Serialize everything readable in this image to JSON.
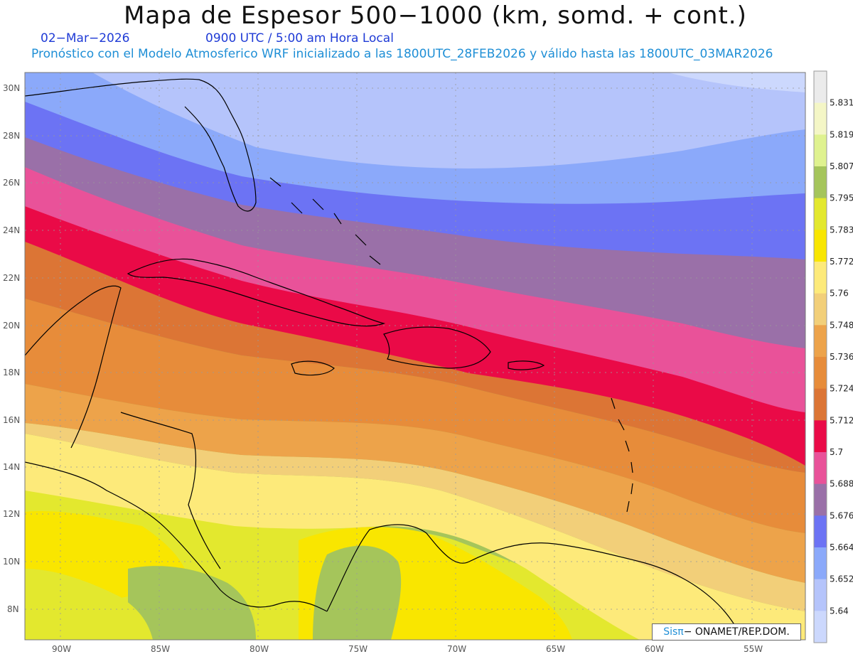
{
  "header": {
    "title": "Mapa de Espesor 500−1000 (km, somd. + cont.)",
    "date": "02−Mar−2026",
    "time": "0900 UTC / 5:00 am Hora Local",
    "model": "Pronóstico con el Modelo Atmosferico WRF inicializado a las 1800UTC_28FEB2026 y válido hasta las  1800UTC_03MAR2026"
  },
  "map": {
    "lon_labels": [
      "90W",
      "85W",
      "80W",
      "75W",
      "70W",
      "65W",
      "60W",
      "55W"
    ],
    "lat_labels": [
      "30N",
      "28N",
      "26N",
      "24N",
      "22N",
      "20N",
      "18N",
      "16N",
      "14N",
      "12N",
      "10N",
      "8N"
    ],
    "grid_lines": "dotted"
  },
  "colorbar": {
    "labels": [
      "5.831",
      "5.819",
      "5.807",
      "5.795",
      "5.783",
      "5.772",
      "5.76",
      "5.748",
      "5.736",
      "5.724",
      "5.712",
      "5.7",
      "5.688",
      "5.676",
      "5.664",
      "5.652",
      "5.64"
    ],
    "colors": [
      "#ebebeb",
      "#f4f6c6",
      "#dff28f",
      "#a5c55b",
      "#e3e82e",
      "#f9e600",
      "#fdea7a",
      "#f2cf79",
      "#eda34a",
      "#e78c3a",
      "#dc7535",
      "#ea0a47",
      "#e95299",
      "#9a70a8",
      "#6c73f4",
      "#8ba9fa",
      "#b5c4fb",
      "#ccd8fd"
    ]
  },
  "credit": {
    "brand": "Sis",
    "pi": "π",
    "text": "− ONAMET/REP.DOM."
  }
}
